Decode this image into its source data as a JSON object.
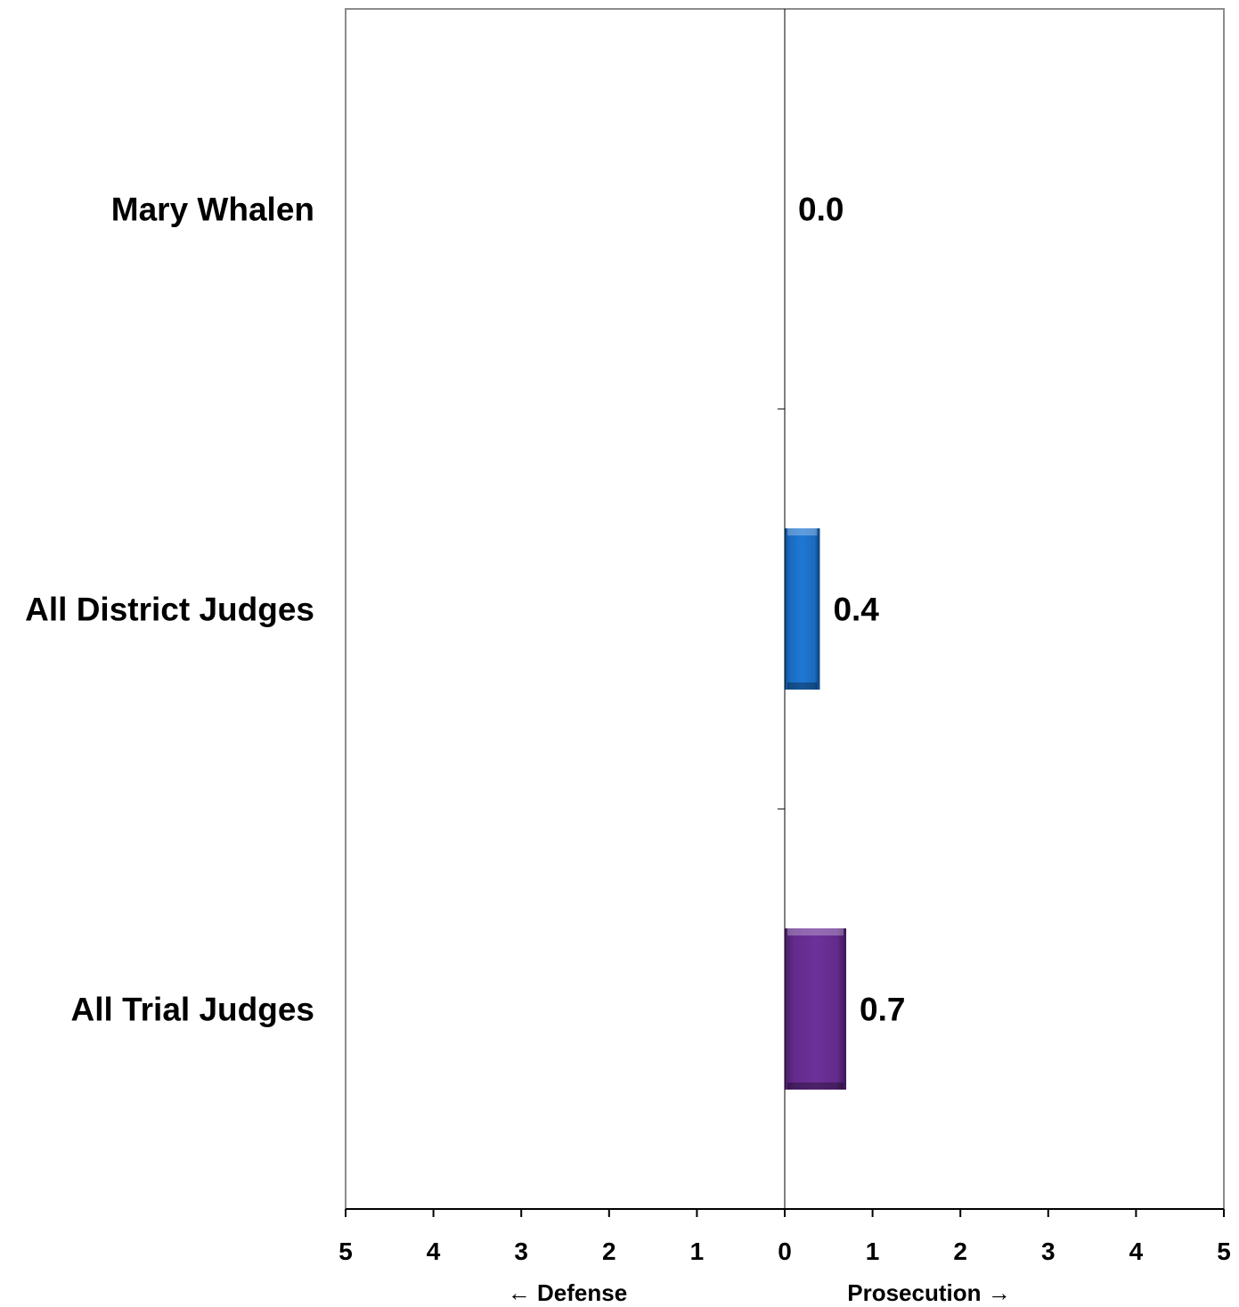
{
  "chart_data": {
    "type": "bar",
    "orientation": "horizontal",
    "categories": [
      "Mary Whalen",
      "All District Judges",
      "All Trial Judges"
    ],
    "values": [
      0.0,
      0.4,
      0.7
    ],
    "value_labels": [
      "0.0",
      "0.4",
      "0.7"
    ],
    "colors": [
      "#1f6fc2",
      "#1f6fc2",
      "#6a2c91"
    ],
    "xlim": [
      -5,
      5
    ],
    "x_tick_values": [
      -5,
      -4,
      -3,
      -2,
      -1,
      0,
      1,
      2,
      3,
      4,
      5
    ],
    "x_tick_labels": [
      "5",
      "4",
      "3",
      "2",
      "1",
      "0",
      "1",
      "2",
      "3",
      "4",
      "5"
    ],
    "direction_labels": {
      "left": "← Defense",
      "right": "Prosecution →"
    },
    "title": "",
    "xlabel": "",
    "ylabel": "",
    "grid": false,
    "legend": "none"
  }
}
